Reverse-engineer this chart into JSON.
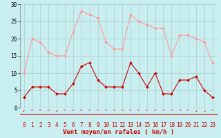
{
  "x": [
    0,
    1,
    2,
    3,
    4,
    5,
    6,
    7,
    8,
    9,
    10,
    11,
    12,
    13,
    14,
    15,
    16,
    17,
    18,
    19,
    20,
    21,
    22,
    23
  ],
  "wind_avg": [
    3,
    6,
    6,
    6,
    4,
    4,
    7,
    12,
    13,
    8,
    6,
    6,
    6,
    13,
    10,
    6,
    10,
    4,
    4,
    8,
    8,
    9,
    5,
    3
  ],
  "wind_gust": [
    10,
    20,
    19,
    16,
    15,
    15,
    22,
    28,
    27,
    26,
    19,
    17,
    17,
    27,
    25,
    24,
    23,
    23,
    15,
    21,
    21,
    20,
    19,
    13
  ],
  "avg_color": "#cc0000",
  "gust_color": "#ff9999",
  "bg_color": "#c8eef0",
  "grid_color": "#aacccc",
  "xlabel": "Vent moyen/en rafales ( km/h )",
  "ylim": [
    0,
    30
  ],
  "xlim_min": -0.5,
  "xlim_max": 23.5,
  "yticks": [
    0,
    5,
    10,
    15,
    20,
    25,
    30
  ],
  "xticks": [
    0,
    1,
    2,
    3,
    4,
    5,
    6,
    7,
    8,
    9,
    10,
    11,
    12,
    13,
    14,
    15,
    16,
    17,
    18,
    19,
    20,
    21,
    22,
    23
  ],
  "tick_fontsize": 5.5,
  "label_fontsize": 6.5,
  "marker": "D",
  "markersize": 2.0,
  "linewidth": 0.8
}
